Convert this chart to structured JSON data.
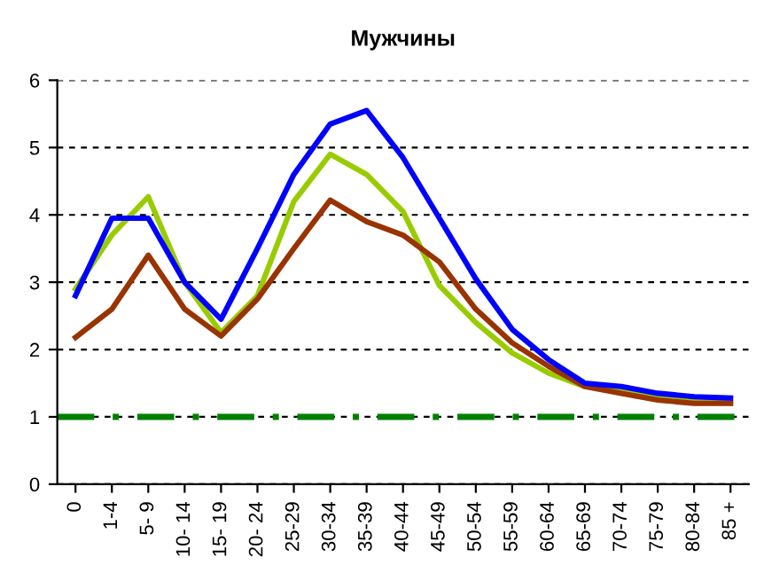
{
  "chart_data": {
    "type": "line",
    "title": "Мужчины",
    "categories": [
      "0",
      "1-4",
      "5- 9",
      "10- 14",
      "15- 19",
      "20- 24",
      "25-29",
      "30-34",
      "35-39",
      "40-44",
      "45-49",
      "50-54",
      "55-59",
      "60-64",
      "65-69",
      "70-74",
      "75-79",
      "80-84",
      "85 +"
    ],
    "series": [
      {
        "color": "#99cc00",
        "values": [
          2.9,
          3.7,
          4.27,
          3.0,
          2.25,
          2.8,
          4.2,
          4.9,
          4.6,
          4.05,
          2.95,
          2.4,
          1.95,
          1.65,
          1.45,
          1.4,
          1.3,
          1.25,
          1.2
        ]
      },
      {
        "color": "#993300",
        "values": [
          2.18,
          2.6,
          3.4,
          2.6,
          2.2,
          2.75,
          3.5,
          4.22,
          3.9,
          3.7,
          3.3,
          2.6,
          2.1,
          1.75,
          1.45,
          1.35,
          1.25,
          1.2,
          1.2
        ]
      },
      {
        "color": "#0000ff",
        "values": [
          2.8,
          3.95,
          3.95,
          3.0,
          2.45,
          3.5,
          4.6,
          5.35,
          5.55,
          4.85,
          3.95,
          3.05,
          2.3,
          1.85,
          1.5,
          1.45,
          1.35,
          1.3,
          1.28
        ]
      }
    ],
    "ref_lines": [
      {
        "axis": "y",
        "value": 1,
        "color": "#008000",
        "line_style": "dashdot"
      }
    ],
    "ylim": [
      0,
      6
    ],
    "yticks": [
      0,
      1,
      2,
      3,
      4,
      5,
      6
    ],
    "grid": "y",
    "marker": "none",
    "line_style": "solid",
    "legend": false
  }
}
